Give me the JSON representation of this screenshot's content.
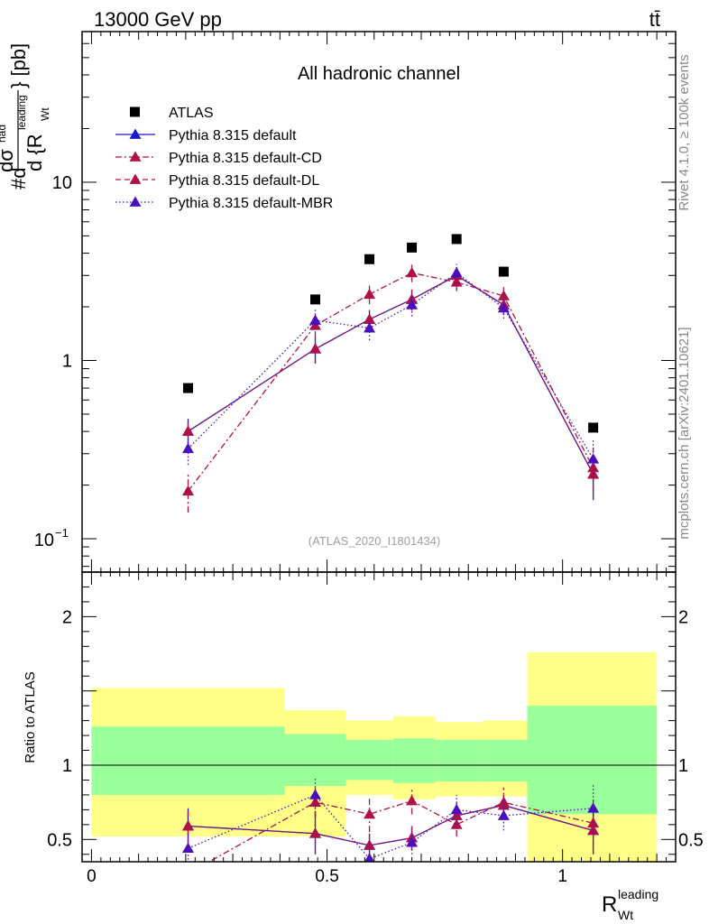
{
  "header": {
    "energy": "13000 GeV pp",
    "process": "tt̄",
    "rivet": "Rivet 4.1.0, ≥ 100k events",
    "source": "mcplots.cern.ch [arXiv:2401.10621]"
  },
  "colors": {
    "data": "#000000",
    "default": "#1a1acc",
    "cd": "#b0104a",
    "dl": "#b0104a",
    "mbr": "#4a10c0",
    "band_inner": "#99ff99",
    "band_outer": "#ffff88"
  },
  "chart_data": [
    {
      "type": "line",
      "panel": "main",
      "title": "All hadronic channel",
      "analysis": "(ATLAS_2020_I1801434)",
      "ylabel": "#d dσ^had / d {R^leading_Wt} [pb]",
      "ylabel_parts": {
        "prefix": "#d",
        "num": "dσ",
        "num_sup": "had",
        "den": "d {R",
        "den_sup": "leading",
        "den_sub": "Wt",
        "suffix": "} [pb]"
      },
      "yscale": "log",
      "ylim": [
        0.065,
        70
      ],
      "y_ticks": [
        {
          "v": 0.1,
          "base": "10",
          "exp": "−1"
        },
        {
          "v": 1,
          "label": "1"
        },
        {
          "v": 10,
          "label": "10"
        }
      ],
      "xlim": [
        -0.02,
        1.24
      ],
      "legend": [
        {
          "key": "atlas",
          "label": "ATLAS"
        },
        {
          "key": "default",
          "label": "Pythia 8.315 default"
        },
        {
          "key": "cd",
          "label": "Pythia 8.315 default-CD"
        },
        {
          "key": "dl",
          "label": "Pythia 8.315 default-DL"
        },
        {
          "key": "mbr",
          "label": "Pythia 8.315 default-MBR"
        }
      ],
      "data": {
        "name": "ATLAS",
        "x": [
          0.205,
          0.475,
          0.59,
          0.68,
          0.775,
          0.875,
          1.065
        ],
        "y": [
          0.7,
          2.2,
          3.7,
          4.3,
          4.8,
          3.15,
          0.42
        ]
      },
      "series": [
        {
          "name": "Pythia 8.315 default",
          "key": "default",
          "style": "solid",
          "x": [
            0.205,
            0.475,
            0.59,
            0.68,
            0.775,
            0.875,
            1.065
          ],
          "y": [
            0.4,
            1.16,
            1.7,
            2.2,
            3.0,
            2.05,
            0.23
          ],
          "err": [
            0.07,
            0.2,
            0.22,
            0.3,
            0.35,
            0.25,
            0.065
          ]
        },
        {
          "name": "Pythia 8.315 default-CD",
          "key": "cd",
          "style": "dashdot",
          "x": [
            0.205,
            0.475,
            0.59,
            0.68,
            0.775,
            0.875,
            1.065
          ],
          "y": [
            0.185,
            1.57,
            2.35,
            3.1,
            2.75,
            2.3,
            0.25
          ],
          "err": [
            0.045,
            0.25,
            0.28,
            0.35,
            0.3,
            0.28,
            0.07
          ]
        },
        {
          "name": "Pythia 8.315 default-DL",
          "key": "dl",
          "style": "dashed",
          "x": [
            0.205,
            0.475,
            0.59,
            0.68,
            0.775,
            0.875,
            1.065
          ],
          "y": [
            0.4,
            1.16,
            1.7,
            2.2,
            3.0,
            2.05,
            0.23
          ],
          "err": [
            0.07,
            0.2,
            0.22,
            0.3,
            0.35,
            0.25,
            0.065
          ]
        },
        {
          "name": "Pythia 8.315 default-MBR",
          "key": "mbr",
          "style": "dotted",
          "x": [
            0.205,
            0.475,
            0.59,
            0.68,
            0.775,
            0.875,
            1.065
          ],
          "y": [
            0.32,
            1.68,
            1.52,
            2.05,
            3.1,
            1.97,
            0.28
          ],
          "err": [
            0.06,
            0.25,
            0.22,
            0.28,
            0.38,
            0.25,
            0.08
          ]
        }
      ]
    },
    {
      "type": "line",
      "panel": "ratio",
      "ylabel": "Ratio to ATLAS",
      "xlabel": "R",
      "xlabel_sup": "leading",
      "xlabel_sub": "Wt",
      "ylim": [
        0.35,
        2.3
      ],
      "xlim": [
        -0.02,
        1.24
      ],
      "y_ticks": [
        0.5,
        1,
        2
      ],
      "y_tick_labels": [
        "0.5",
        "1",
        "2"
      ],
      "x_ticks": [
        0,
        0.5,
        1
      ],
      "x_tick_labels": [
        "0",
        "0.5",
        "1"
      ],
      "bands": {
        "edges": [
          0,
          0.41,
          0.54,
          0.64,
          0.73,
          0.83,
          0.925,
          1.2
        ],
        "outer_low": [
          0.52,
          0.52,
          0.8,
          0.77,
          0.79,
          0.79,
          0.33,
          0.33
        ],
        "outer_high": [
          1.52,
          1.37,
          1.3,
          1.33,
          1.29,
          1.3,
          1.76,
          1.76
        ],
        "inner_low": [
          0.8,
          0.86,
          0.9,
          0.88,
          0.89,
          0.89,
          0.67,
          0.67
        ],
        "inner_high": [
          1.26,
          1.21,
          1.17,
          1.18,
          1.17,
          1.17,
          1.4,
          1.4
        ]
      },
      "series": [
        {
          "name": "Pythia 8.315 default",
          "key": "default",
          "style": "solid",
          "x": [
            0.205,
            0.475,
            0.59,
            0.68,
            0.775,
            0.875,
            1.065
          ],
          "y": [
            0.59,
            0.54,
            0.46,
            0.51,
            0.66,
            0.73,
            0.56
          ],
          "err": [
            0.12,
            0.14,
            0.08,
            0.08,
            0.09,
            0.07,
            0.16
          ]
        },
        {
          "name": "Pythia 8.315 default-CD",
          "key": "cd",
          "style": "dashdot",
          "x": [
            0.205,
            0.475,
            0.59,
            0.68,
            0.775,
            0.875,
            1.065
          ],
          "y": [
            0.27,
            0.75,
            0.67,
            0.76,
            0.6,
            0.75,
            0.61
          ],
          "err": [
            0.06,
            0.1,
            0.12,
            0.09,
            0.08,
            0.1,
            0.16
          ]
        },
        {
          "name": "Pythia 8.315 default-DL",
          "key": "dl",
          "style": "dashed",
          "x": [
            0.205,
            0.475,
            0.59,
            0.68,
            0.775,
            0.875,
            1.065
          ],
          "y": [
            0.59,
            0.54,
            0.46,
            0.51,
            0.66,
            0.73,
            0.56
          ],
          "err": [
            0.12,
            0.14,
            0.08,
            0.08,
            0.09,
            0.07,
            0.16
          ]
        },
        {
          "name": "Pythia 8.315 default-MBR",
          "key": "mbr",
          "style": "dotted",
          "x": [
            0.205,
            0.475,
            0.59,
            0.68,
            0.775,
            0.875,
            1.065
          ],
          "y": [
            0.44,
            0.8,
            0.37,
            0.48,
            0.7,
            0.66,
            0.71
          ],
          "err": [
            0.1,
            0.12,
            0.07,
            0.08,
            0.1,
            0.1,
            0.17
          ]
        }
      ]
    }
  ]
}
